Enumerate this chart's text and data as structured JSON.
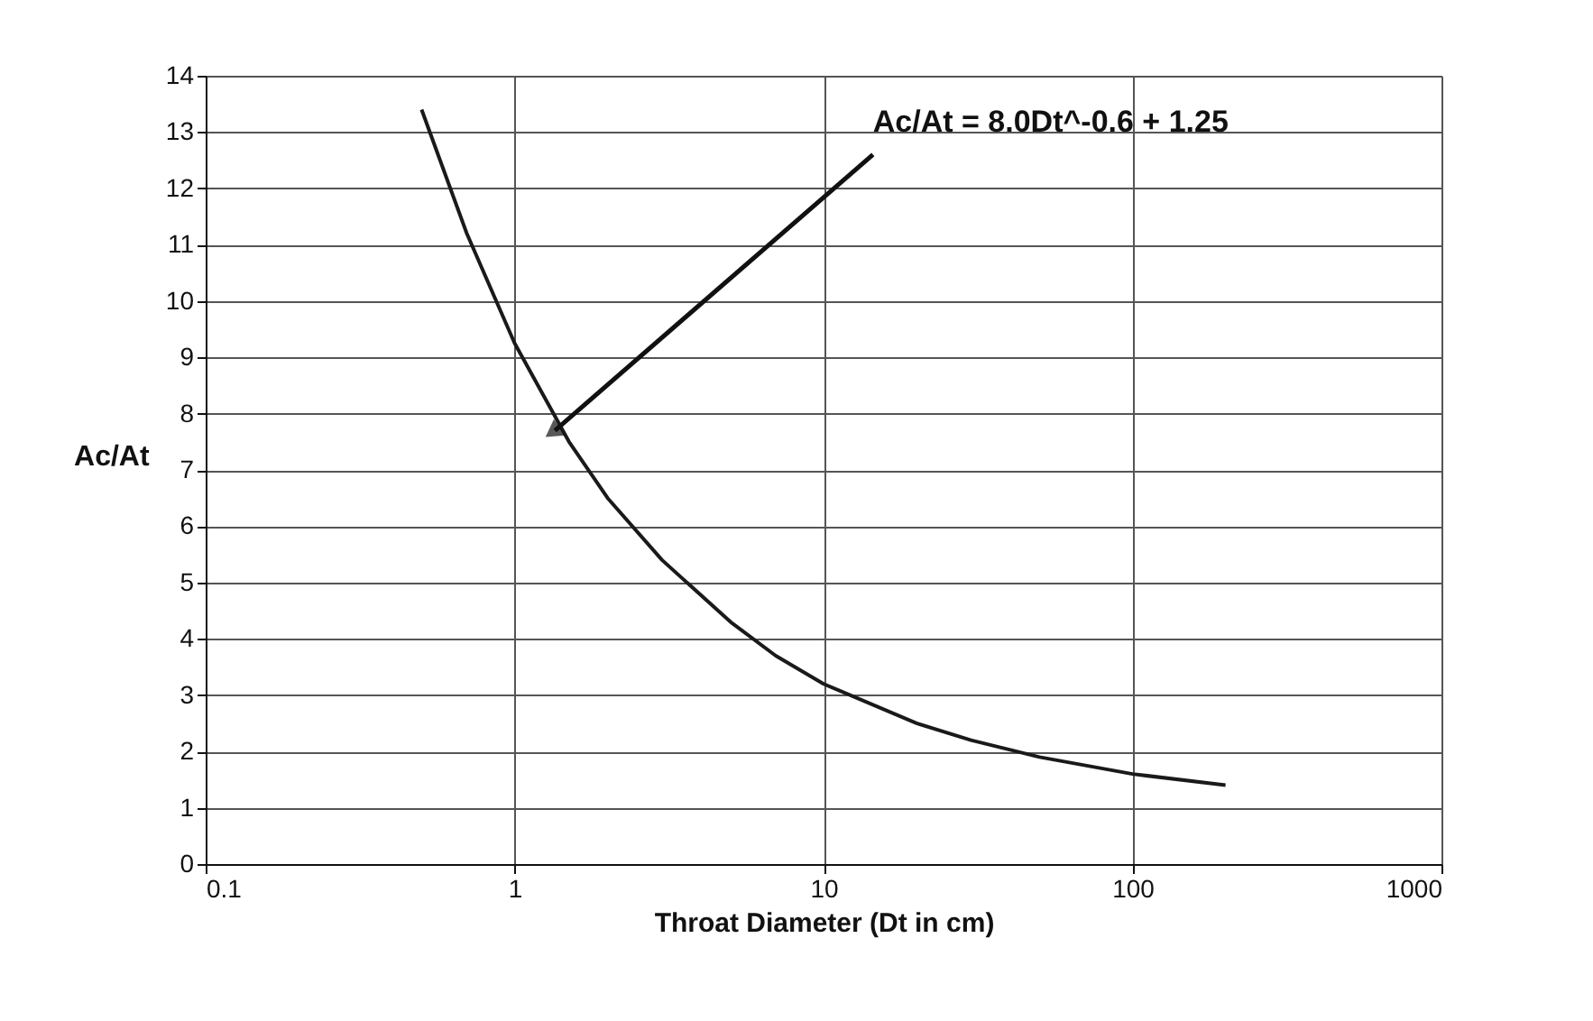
{
  "chart_data": {
    "type": "line",
    "xlabel": "Throat Diameter (Dt in cm)",
    "ylabel": "Ac/At",
    "x": [
      0.5,
      0.7,
      1,
      1.5,
      2,
      3,
      5,
      7,
      10,
      20,
      30,
      50,
      100,
      200
    ],
    "series": [
      {
        "color": "#1a1a1a",
        "values": [
          13.4,
          11.2,
          9.25,
          7.5,
          6.5,
          5.4,
          4.3,
          3.7,
          3.2,
          2.5,
          2.2,
          1.9,
          1.6,
          1.4
        ]
      }
    ],
    "xlim": [
      0.1,
      1000
    ],
    "xticks": [
      0.1,
      1,
      10,
      100,
      1000
    ],
    "log": "x",
    "ylim": [
      0,
      14
    ],
    "yticks": [
      0,
      1,
      2,
      3,
      4,
      5,
      6,
      7,
      8,
      9,
      10,
      11,
      12,
      13,
      14
    ],
    "grid": true,
    "marker": "none",
    "line_style": "solid",
    "annotations": [
      {
        "text": "Ac/At = 8.0Dt^-0.6 + 1.25",
        "x": 1.35,
        "y": 7.7
      }
    ]
  }
}
